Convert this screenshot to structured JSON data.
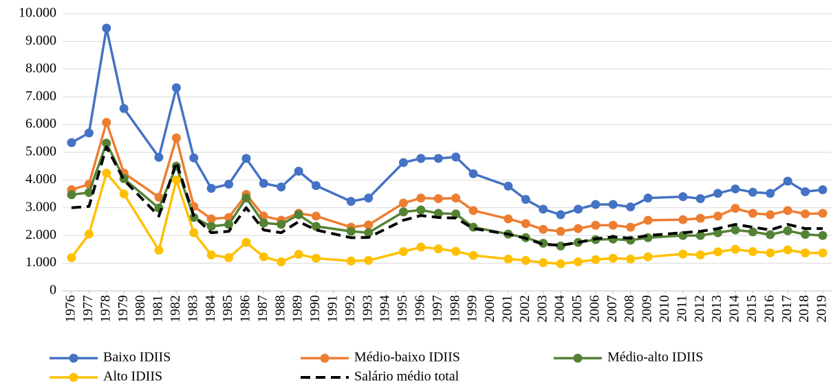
{
  "chart_data": {
    "type": "line",
    "x": [
      1976,
      1977,
      1978,
      1979,
      1981,
      1982,
      1983,
      1984,
      1985,
      1986,
      1987,
      1988,
      1989,
      1990,
      1992,
      1993,
      1995,
      1996,
      1997,
      1998,
      1999,
      2001,
      2002,
      2003,
      2004,
      2005,
      2006,
      2007,
      2008,
      2009,
      2011,
      2012,
      2013,
      2014,
      2015,
      2016,
      2017,
      2018,
      2019
    ],
    "xlim": [
      1976,
      2019
    ],
    "xticks": [
      1976,
      1977,
      1978,
      1979,
      1980,
      1981,
      1982,
      1983,
      1984,
      1985,
      1986,
      1987,
      1988,
      1989,
      1990,
      1991,
      1992,
      1993,
      1994,
      1995,
      1996,
      1997,
      1998,
      1999,
      2000,
      2001,
      2002,
      2003,
      2004,
      2005,
      2006,
      2007,
      2008,
      2009,
      2010,
      2011,
      2012,
      2013,
      2014,
      2015,
      2016,
      2017,
      2018,
      2019
    ],
    "ylim": [
      0,
      10000
    ],
    "yticks": [
      0,
      {
        "value": 1000,
        "label": "1.000"
      },
      {
        "value": 2000,
        "label": "2.000"
      },
      {
        "value": 3000,
        "label": "3.000"
      },
      {
        "value": 4000,
        "label": "4.000"
      },
      {
        "value": 5000,
        "label": "5.000"
      },
      {
        "value": 6000,
        "label": "6.000"
      },
      {
        "value": 7000,
        "label": "7.000"
      },
      {
        "value": 8000,
        "label": "8.000"
      },
      {
        "value": 9000,
        "label": "9.000"
      },
      {
        "value": 10000,
        "label": "10.000"
      }
    ],
    "grid": true,
    "legend": "bottom",
    "series": [
      {
        "name": "Baixo IDIIS",
        "color": "#4472c4",
        "markers": true,
        "dashed": false,
        "values": [
          5350,
          5700,
          9480,
          6580,
          4820,
          7330,
          4800,
          3700,
          3850,
          4780,
          3880,
          3750,
          4320,
          3800,
          3230,
          3350,
          4630,
          4780,
          4780,
          4830,
          4230,
          3780,
          3300,
          2950,
          2750,
          2950,
          3120,
          3120,
          3030,
          3350,
          3400,
          3330,
          3520,
          3680,
          3560,
          3520,
          3960,
          3580,
          3650
        ]
      },
      {
        "name": "Médio-baixo IDIIS",
        "color": "#ed7d31",
        "markers": true,
        "dashed": false,
        "values": [
          3650,
          3850,
          6080,
          4250,
          3380,
          5520,
          3050,
          2600,
          2650,
          3480,
          2700,
          2550,
          2800,
          2700,
          2300,
          2380,
          3170,
          3350,
          3330,
          3350,
          2900,
          2600,
          2430,
          2220,
          2150,
          2250,
          2370,
          2370,
          2300,
          2550,
          2570,
          2620,
          2700,
          2980,
          2800,
          2750,
          2900,
          2780,
          2800
        ]
      },
      {
        "name": "Médio-alto IDIIS",
        "color": "#548235",
        "markers": true,
        "dashed": false,
        "values": [
          3470,
          3550,
          5330,
          4050,
          2990,
          4500,
          2650,
          2330,
          2400,
          3350,
          2450,
          2400,
          2750,
          2330,
          2150,
          2100,
          2850,
          2920,
          2800,
          2780,
          2300,
          2050,
          1920,
          1720,
          1620,
          1750,
          1850,
          1870,
          1830,
          1920,
          2000,
          2000,
          2100,
          2200,
          2130,
          2030,
          2170,
          2040,
          2000
        ]
      },
      {
        "name": "Alto IDIIS",
        "color": "#ffc000",
        "markers": true,
        "dashed": false,
        "values": [
          1200,
          2050,
          4250,
          3500,
          1470,
          4000,
          2100,
          1300,
          1200,
          1750,
          1230,
          1050,
          1320,
          1180,
          1080,
          1100,
          1420,
          1580,
          1520,
          1430,
          1280,
          1150,
          1100,
          1020,
          980,
          1050,
          1130,
          1180,
          1150,
          1230,
          1330,
          1300,
          1410,
          1500,
          1420,
          1370,
          1480,
          1370,
          1370
        ]
      },
      {
        "name": "Salário médio total",
        "color": "#000000",
        "markers": false,
        "dashed": true,
        "values": [
          3000,
          3050,
          5200,
          4000,
          2700,
          4650,
          2700,
          2100,
          2150,
          3000,
          2200,
          2100,
          2500,
          2200,
          1920,
          1930,
          2550,
          2720,
          2650,
          2630,
          2250,
          2050,
          1900,
          1680,
          1650,
          1750,
          1880,
          1950,
          1900,
          2000,
          2100,
          2150,
          2250,
          2400,
          2300,
          2200,
          2400,
          2250,
          2250
        ]
      }
    ]
  }
}
